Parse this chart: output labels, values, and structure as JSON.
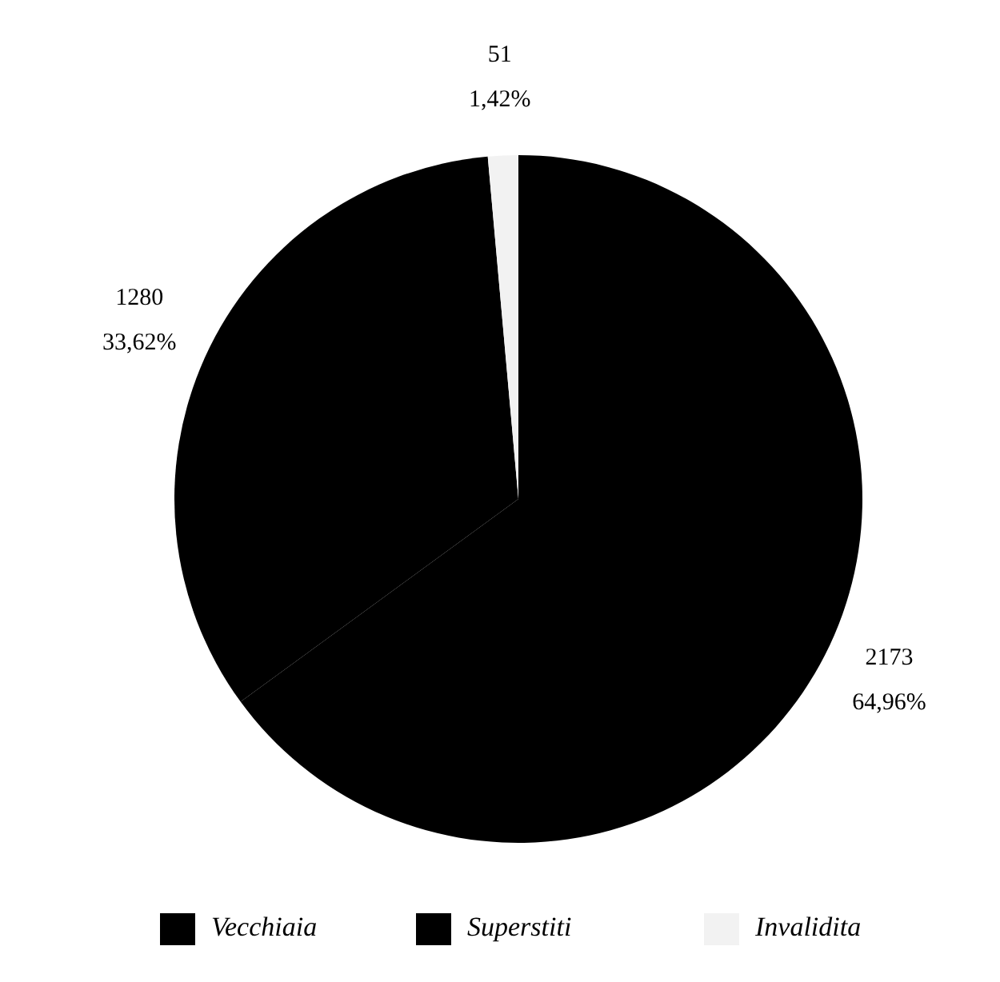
{
  "chart_data": {
    "type": "pie",
    "categories": [
      "Vecchiaia",
      "Superstiti",
      "Invalidita"
    ],
    "values": [
      64.96,
      33.62,
      1.42
    ],
    "colors": [
      "#000000",
      "#000000",
      "#f2f2f2"
    ],
    "value_labels": [
      "2173\n64,96%",
      "1280\n33,62%",
      "51\n1,42%"
    ],
    "legend": "bottom"
  }
}
